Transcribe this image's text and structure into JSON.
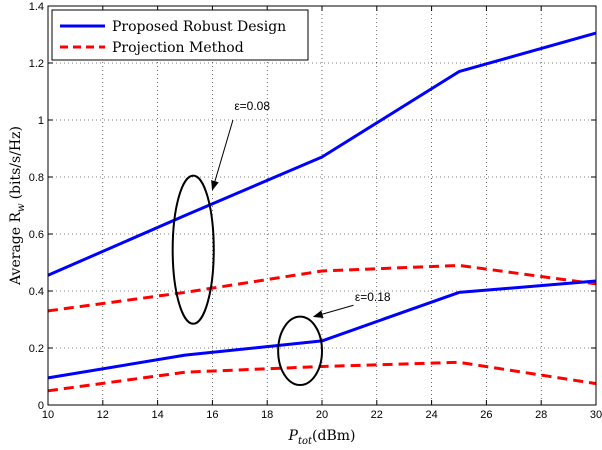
{
  "chart_data": {
    "type": "line",
    "xlabel": "P_tot(dBm)",
    "xlabel_main": "P",
    "xlabel_sub": "tot",
    "xlabel_rest": "(dBm)",
    "ylabel": "Average R_w (bits/s/Hz)",
    "ylabel_pre": "Average R",
    "ylabel_sub": "w",
    "ylabel_post": "(bits/s/Hz)",
    "xlim": [
      10,
      30
    ],
    "ylim": [
      0,
      1.4
    ],
    "xticks": [
      10,
      12,
      14,
      16,
      18,
      20,
      22,
      24,
      26,
      28,
      30
    ],
    "yticks": [
      0,
      0.2,
      0.4,
      0.6,
      0.8,
      1,
      1.2,
      1.4
    ],
    "grid": true,
    "legend_position": "top-left",
    "series": [
      {
        "name": "Proposed Robust Design",
        "group": "ε=0.08",
        "color": "#0000ff",
        "style": "solid",
        "x": [
          10,
          15,
          20,
          25,
          30
        ],
        "y": [
          0.455,
          0.665,
          0.87,
          1.17,
          1.305
        ]
      },
      {
        "name": "Projection Method",
        "group": "ε=0.08",
        "color": "#ff0000",
        "style": "dashed",
        "x": [
          10,
          15,
          20,
          25,
          30
        ],
        "y": [
          0.33,
          0.395,
          0.47,
          0.49,
          0.425
        ]
      },
      {
        "name": "Proposed Robust Design",
        "group": "ε=0.18",
        "color": "#0000ff",
        "style": "solid",
        "x": [
          10,
          15,
          20,
          25,
          30
        ],
        "y": [
          0.095,
          0.175,
          0.225,
          0.395,
          0.435
        ]
      },
      {
        "name": "Projection Method",
        "group": "ε=0.18",
        "color": "#ff0000",
        "style": "dashed",
        "x": [
          10,
          15,
          20,
          25,
          30
        ],
        "y": [
          0.05,
          0.115,
          0.135,
          0.15,
          0.075
        ]
      }
    ],
    "legend": [
      {
        "label": "Proposed Robust Design",
        "color": "#0000ff",
        "style": "solid"
      },
      {
        "label": "Projection Method",
        "color": "#ff0000",
        "style": "dashed"
      }
    ],
    "annotations": [
      {
        "text": "ε=0.08",
        "ellipse_center": [
          15.3,
          0.545
        ],
        "ellipse_rx": 0.75,
        "ellipse_ry": 0.26,
        "arrow_to": [
          16.0,
          0.755
        ]
      },
      {
        "text": "ε=0.18",
        "ellipse_center": [
          19.2,
          0.19
        ],
        "ellipse_rx": 0.8,
        "ellipse_ry": 0.12,
        "arrow_to": [
          19.7,
          0.31
        ]
      }
    ]
  }
}
